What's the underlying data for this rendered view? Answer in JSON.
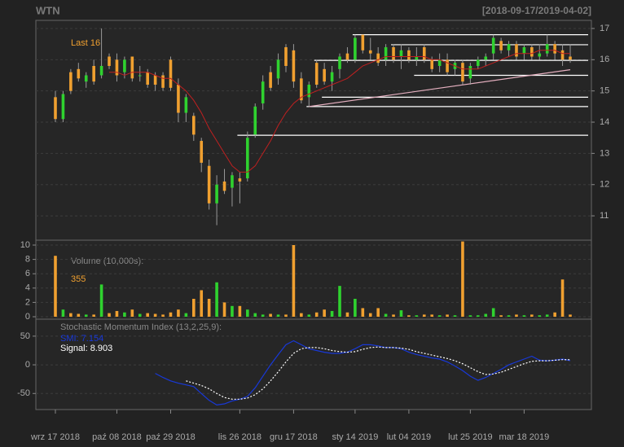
{
  "chart_data": {
    "type": "candlestick",
    "title": "WTN",
    "subtitle": "[2018-09-17/2019-04-02]",
    "last_label": "Last 16",
    "categories": [
      "wrz 17 2018",
      null,
      null,
      null,
      null,
      null,
      null,
      null,
      "paź 08 2018",
      null,
      null,
      null,
      null,
      null,
      null,
      "paź 29 2018",
      null,
      null,
      null,
      null,
      null,
      null,
      null,
      null,
      "lis 26 2018",
      null,
      null,
      null,
      null,
      null,
      null,
      "gru 17 2018",
      null,
      null,
      null,
      null,
      null,
      null,
      null,
      "sty 14 2019",
      null,
      null,
      null,
      null,
      null,
      null,
      "lut 04 2019",
      null,
      null,
      null,
      null,
      null,
      null,
      null,
      "lut 25 2019",
      null,
      null,
      null,
      null,
      null,
      null,
      "mar 18 2019",
      null,
      null,
      null,
      null,
      null,
      null
    ],
    "open": [
      14.8,
      14.1,
      15.6,
      15.7,
      15.3,
      15.8,
      15.5,
      16.1,
      16.0,
      15.6,
      16.1,
      15.5,
      15.6,
      15.5,
      15.5,
      16.0,
      15.2,
      14.3,
      14.2,
      13.4,
      12.6,
      11.4,
      12.1,
      11.9,
      12.2,
      12.2,
      13.6,
      14.6,
      15.6,
      15.4,
      16.4,
      16.3,
      15.4,
      14.8,
      15.9,
      15.7,
      15.3,
      15.7,
      16.2,
      16.0,
      16.8,
      16.3,
      16.2,
      16.0,
      16.4,
      16.1,
      16.3,
      16.0,
      16.4,
      16.0,
      15.8,
      16.0,
      15.7,
      15.9,
      15.4,
      15.8,
      16.0,
      16.2,
      16.6,
      16.3,
      16.5,
      16.2,
      16.4,
      16.1,
      16.2,
      16.5,
      16.3,
      16.1
    ],
    "high": [
      15.0,
      15.0,
      15.7,
      15.9,
      15.6,
      16.0,
      17.0,
      16.2,
      16.2,
      16.1,
      16.1,
      15.8,
      15.7,
      15.6,
      15.6,
      16.1,
      15.4,
      14.9,
      14.3,
      13.5,
      12.8,
      12.3,
      12.5,
      12.4,
      12.4,
      13.7,
      14.6,
      15.5,
      15.8,
      16.2,
      16.5,
      16.5,
      15.6,
      15.3,
      16.0,
      15.9,
      15.8,
      16.2,
      16.4,
      16.8,
      16.8,
      16.7,
      16.4,
      16.5,
      16.5,
      16.5,
      16.4,
      16.4,
      16.5,
      16.1,
      16.2,
      16.2,
      16.0,
      16.0,
      15.9,
      16.1,
      16.2,
      16.8,
      16.7,
      16.6,
      16.6,
      16.5,
      16.5,
      16.5,
      16.8,
      16.6,
      16.5,
      16.5
    ],
    "low": [
      14.0,
      14.0,
      14.9,
      15.3,
      15.1,
      15.2,
      15.4,
      15.7,
      15.3,
      15.4,
      15.3,
      15.3,
      15.1,
      15.0,
      15.0,
      15.0,
      14.0,
      14.0,
      13.4,
      12.4,
      11.2,
      10.7,
      11.7,
      11.3,
      11.4,
      12.1,
      13.5,
      14.4,
      15.0,
      15.2,
      15.6,
      15.1,
      14.6,
      14.5,
      15.1,
      15.2,
      15.0,
      15.4,
      15.9,
      15.9,
      16.2,
      16.0,
      15.8,
      15.8,
      15.9,
      15.7,
      15.9,
      15.8,
      15.9,
      15.6,
      15.6,
      15.5,
      15.5,
      15.2,
      15.2,
      15.7,
      15.8,
      16.0,
      16.2,
      16.1,
      16.0,
      16.0,
      16.0,
      16.0,
      16.1,
      16.0,
      15.8,
      15.9
    ],
    "close": [
      14.1,
      14.9,
      15.0,
      15.4,
      15.5,
      15.3,
      15.8,
      15.8,
      15.5,
      16.0,
      15.4,
      15.5,
      15.2,
      15.2,
      15.1,
      15.1,
      14.3,
      14.8,
      13.6,
      12.7,
      11.4,
      12.0,
      11.8,
      12.3,
      12.1,
      13.5,
      14.5,
      15.3,
      15.1,
      16.0,
      15.8,
      15.3,
      14.7,
      15.2,
      15.2,
      15.3,
      15.6,
      16.1,
      16.0,
      16.7,
      16.3,
      16.2,
      15.9,
      16.4,
      16.0,
      16.3,
      16.0,
      16.1,
      16.0,
      15.7,
      16.0,
      15.6,
      15.9,
      15.3,
      15.8,
      16.0,
      16.1,
      16.7,
      16.3,
      16.5,
      16.1,
      16.4,
      16.1,
      16.2,
      16.5,
      16.2,
      16.0,
      16.0
    ],
    "up_color": "#2fd22f",
    "down_color": "#f0a030",
    "ylim": [
      10.22,
      17.26
    ],
    "yticks": [
      11,
      12,
      13,
      14,
      15,
      16,
      17
    ],
    "grid": true,
    "ma": {
      "color": "#c02020",
      "values": [
        null,
        null,
        null,
        null,
        null,
        null,
        null,
        15.6,
        15.6,
        15.5,
        15.6,
        15.6,
        15.6,
        15.5,
        15.4,
        15.4,
        15.2,
        15.0,
        14.7,
        14.3,
        13.8,
        13.4,
        13.0,
        12.6,
        12.4,
        12.4,
        12.6,
        13.0,
        13.4,
        13.9,
        14.3,
        14.6,
        14.8,
        14.9,
        15.0,
        15.1,
        15.2,
        15.3,
        15.4,
        15.6,
        15.8,
        15.9,
        16.0,
        16.1,
        16.1,
        16.1,
        16.1,
        16.1,
        16.1,
        16.0,
        16.0,
        15.9,
        15.8,
        15.7,
        15.7,
        15.7,
        15.8,
        15.9,
        16.0,
        16.1,
        16.2,
        16.2,
        16.2,
        16.3,
        16.3,
        16.3,
        16.2,
        16.2
      ]
    },
    "hlines": {
      "color": "#ffffff",
      "values": [
        16.8,
        16.48,
        15.98,
        15.5,
        14.8,
        14.5,
        13.58
      ],
      "start": [
        39,
        44,
        34,
        47,
        35,
        33,
        24
      ]
    },
    "trendline": {
      "color": "#e6b0c0",
      "x": [
        33,
        67
      ],
      "y": [
        14.5,
        15.68
      ]
    },
    "volume": {
      "title": "Volume (10,000s):",
      "last_label": "355",
      "values": [
        8.5,
        1,
        0.5,
        0.4,
        0.3,
        0.3,
        4.5,
        0.5,
        0.8,
        0.6,
        1,
        0.4,
        0.5,
        0.4,
        0.3,
        0.6,
        1,
        0.5,
        2.5,
        3.7,
        2.5,
        4.8,
        2,
        1.5,
        1.5,
        1,
        0.5,
        0.3,
        0.4,
        0.3,
        0.3,
        10,
        0.5,
        0.3,
        0.6,
        1,
        0.8,
        4.3,
        0.6,
        2.5,
        1.2,
        0.5,
        1.2,
        0.4,
        0.3,
        0.9,
        0.2,
        0.2,
        0.3,
        0.3,
        0.2,
        0.3,
        0.2,
        10.5,
        0.2,
        0.2,
        0.4,
        1.2,
        0.2,
        0.2,
        0.3,
        0.2,
        0.3,
        0.2,
        0.3,
        0.6,
        5.2,
        0.3
      ],
      "ylim": [
        -0.34,
        10.68
      ],
      "yticks": [
        0,
        2,
        4,
        6,
        8,
        10
      ]
    },
    "smi": {
      "title": "Stochastic Momentum Index (13,2,25,9):",
      "ylim": [
        -78,
        79.6
      ],
      "yticks": [
        -50,
        0,
        50
      ],
      "series": [
        {
          "name": "SMI: 7.154",
          "color": "#1838d8",
          "dash": false,
          "values": [
            null,
            null,
            null,
            null,
            null,
            null,
            null,
            null,
            null,
            null,
            null,
            null,
            null,
            -15,
            -22,
            -28,
            -32,
            -35,
            -38,
            -50,
            -62,
            -70,
            -68,
            -63,
            -60,
            -55,
            -40,
            -20,
            0,
            18,
            35,
            42,
            35,
            28,
            25,
            22,
            20,
            20,
            22,
            28,
            35,
            35,
            33,
            30,
            30,
            28,
            22,
            18,
            15,
            12,
            10,
            5,
            -2,
            -10,
            -20,
            -27,
            -22,
            -15,
            -8,
            0,
            5,
            10,
            15,
            8,
            7,
            8,
            10,
            7.154
          ]
        },
        {
          "name": "Signal: 8.903",
          "color": "#ffffff",
          "dash": true,
          "values": [
            null,
            null,
            null,
            null,
            null,
            null,
            null,
            null,
            null,
            null,
            null,
            null,
            null,
            null,
            null,
            null,
            null,
            -28,
            -32,
            -36,
            -42,
            -50,
            -57,
            -60,
            -60,
            -58,
            -52,
            -42,
            -28,
            -12,
            5,
            20,
            28,
            30,
            30,
            28,
            25,
            23,
            22,
            23,
            27,
            30,
            31,
            30,
            30,
            29,
            27,
            23,
            20,
            17,
            14,
            11,
            7,
            2,
            -5,
            -12,
            -17,
            -16,
            -13,
            -8,
            -3,
            2,
            6,
            7,
            7,
            8,
            9,
            8.903
          ]
        }
      ]
    }
  }
}
